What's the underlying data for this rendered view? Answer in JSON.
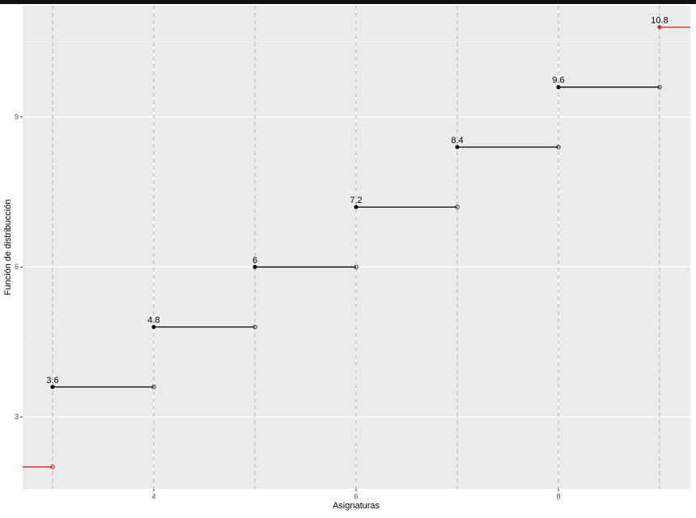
{
  "chart_data": {
    "type": "step",
    "x_label": "Asignaturas",
    "y_label": "Función de distribucción",
    "x": [
      3,
      4,
      5,
      6,
      7,
      8,
      9
    ],
    "values": [
      3.6,
      4.8,
      6,
      7.2,
      8.4,
      9.6,
      10.8
    ],
    "before_value": 2,
    "color": "#000000",
    "edge_color": "#e41a1c",
    "vlines": [
      3,
      4,
      5,
      6,
      7,
      8,
      9
    ],
    "xlim": [
      2.704,
      9.304
    ],
    "ylim": [
      1.56,
      11.23
    ],
    "xticks": [
      4,
      6,
      8
    ],
    "yticks": [
      3,
      6,
      9
    ],
    "yminor": [
      4.5,
      7.5,
      10.5
    ],
    "grid": true
  }
}
